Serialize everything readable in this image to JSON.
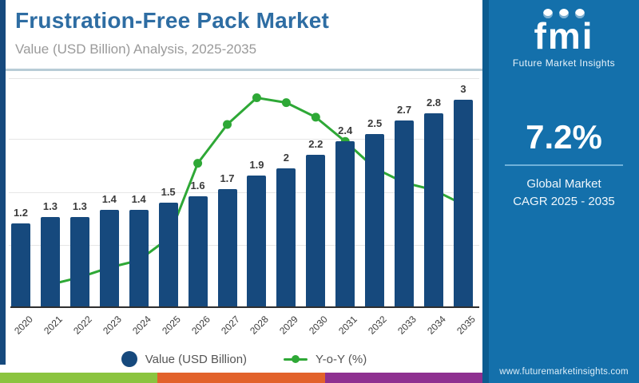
{
  "header": {
    "title": "Frustration-Free Pack Market",
    "subtitle": "Value (USD Billion) Analysis, 2025-2035"
  },
  "chart_data": {
    "type": "bar",
    "title": "Frustration-Free Pack Market",
    "subtitle": "Value (USD Billion) Analysis, 2025-2035",
    "categories": [
      "2020",
      "2021",
      "2022",
      "2023",
      "2024",
      "2025",
      "2026",
      "2027",
      "2028",
      "2029",
      "2030",
      "2031",
      "2032",
      "2033",
      "2034",
      "2035"
    ],
    "series": [
      {
        "name": "Value (USD Billion)",
        "type": "bar",
        "color": "#16497d",
        "values": [
          1.2,
          1.3,
          1.3,
          1.4,
          1.4,
          1.5,
          1.6,
          1.7,
          1.9,
          2,
          2.2,
          2.4,
          2.5,
          2.7,
          2.8,
          3
        ],
        "labels": [
          "1.2",
          "1.3",
          "1.3",
          "1.4",
          "1.4",
          "1.5",
          "1.6",
          "1.7",
          "1.9",
          "2",
          "2.2",
          "2.4",
          "2.5",
          "2.7",
          "2.8",
          "3"
        ]
      },
      {
        "name": "Y-o-Y (%)",
        "type": "line",
        "color": "#2ea836",
        "values": [
          null,
          2.1,
          2.4,
          2.8,
          3.1,
          4.0,
          7.1,
          8.7,
          9.8,
          9.6,
          9.0,
          8.0,
          6.9,
          6.3,
          6.0,
          5.4
        ],
        "values_note": "Y-o-Y percentages estimated from line position; chart shows no value axis"
      }
    ],
    "xlabel": "",
    "ylabel": "",
    "bar_axis_max": 3.35,
    "grid": true,
    "legend_position": "bottom"
  },
  "legend": {
    "items": [
      {
        "label": "Value (USD Billion)",
        "color": "#16497d",
        "marker": "circle"
      },
      {
        "label": "Y-o-Y (%)",
        "color": "#2ea836",
        "marker": "line-dot"
      }
    ]
  },
  "sidebar": {
    "logo_text": "fmi",
    "logo_subtext": "Future Market Insights",
    "cagr_value": "7.2%",
    "cagr_label_line1": "Global Market",
    "cagr_label_line2": "CAGR 2025 - 2035",
    "website": "www.futuremarketinsights.com"
  },
  "footer_strip": {
    "colors": [
      "#8bc43f",
      "#e2622b",
      "#8e3090"
    ]
  },
  "colors": {
    "bar": "#16497d",
    "line": "#2ea836",
    "title": "#2e6da3",
    "subtitle": "#9a9a9a",
    "sidebar_bg": "#1470ab",
    "sidebar_edge": "#0c5c90",
    "axis": "#2f2f2f",
    "gridline": "#e6e6e6"
  }
}
